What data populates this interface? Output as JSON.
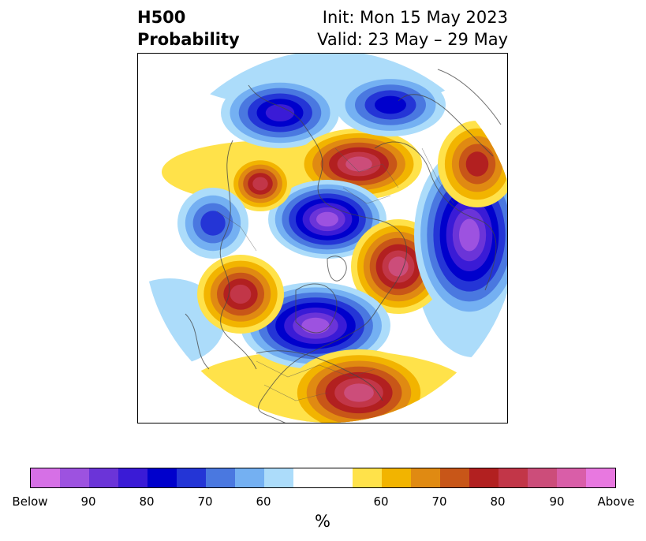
{
  "title": {
    "left_line1": "H500",
    "left_line2": "Probability",
    "right_line1": "Init: Mon 15 May 2023",
    "right_line2": "Valid: 23 May – 29 May"
  },
  "colorbar": {
    "unit": "%",
    "colors": [
      "#d670e6",
      "#9d52e0",
      "#6b34d8",
      "#3a1bd6",
      "#0000cc",
      "#2435d6",
      "#4a78e0",
      "#74b0f2",
      "#acdcfa",
      "#ffffff",
      "#ffffff",
      "#ffe24a",
      "#f2b400",
      "#e08a12",
      "#c85618",
      "#b22020",
      "#c23648",
      "#cc4d7a",
      "#d95ea8",
      "#e878e0"
    ],
    "tick_labels": [
      "Below",
      "90",
      "80",
      "70",
      "60",
      "60",
      "70",
      "80",
      "90",
      "Above"
    ]
  },
  "map": {
    "anomalies": [
      {
        "sign": "below",
        "level": 3
      },
      {
        "sign": "above",
        "level": 4
      },
      {
        "sign": "below",
        "level": 2
      },
      {
        "sign": "below",
        "level": 5
      },
      {
        "sign": "above",
        "level": 4
      },
      {
        "sign": "below",
        "level": 5
      },
      {
        "sign": "above",
        "level": 3
      },
      {
        "sign": "below",
        "level": 5
      },
      {
        "sign": "above",
        "level": 3
      },
      {
        "sign": "above",
        "level": 4
      },
      {
        "sign": "above",
        "level": 2
      },
      {
        "sign": "below",
        "level": 1
      }
    ]
  }
}
